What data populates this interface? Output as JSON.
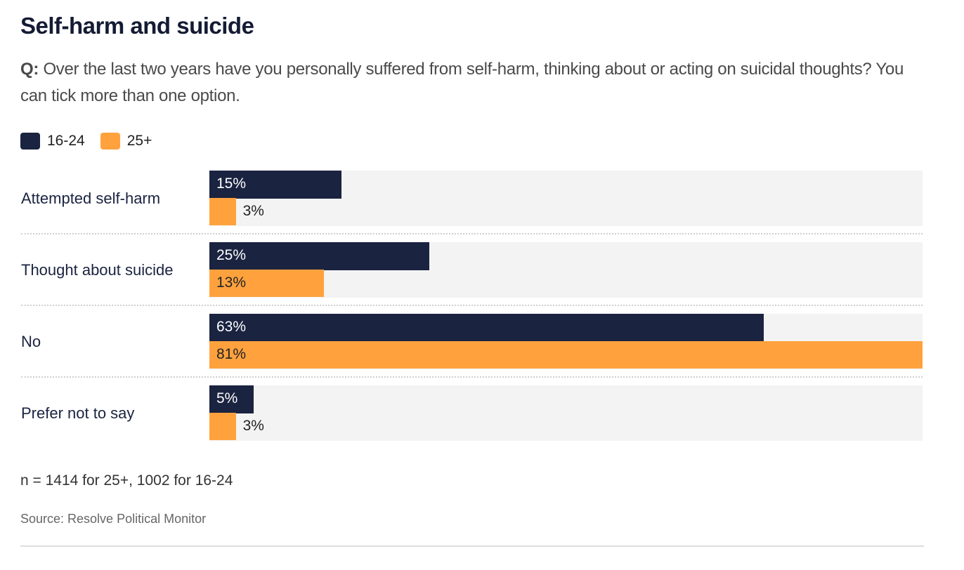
{
  "chart_data": {
    "type": "bar",
    "orientation": "horizontal",
    "title": "Self-harm and suicide",
    "subtitle_prefix": "Q:",
    "subtitle": "Over the last two years have you personally suffered from self-harm, thinking about or acting on suicidal thoughts? You can tick more than one option.",
    "categories": [
      "Attempted self-harm",
      "Thought about suicide",
      "No",
      "Prefer not to say"
    ],
    "series": [
      {
        "name": "16-24",
        "color": "#1a2340",
        "values": [
          15,
          25,
          63,
          5
        ]
      },
      {
        "name": "25+",
        "color": "#ffa23e",
        "values": [
          3,
          13,
          81,
          3
        ]
      }
    ],
    "unit": "%",
    "xlim": [
      0,
      81
    ],
    "legend": "top-left",
    "grid": false,
    "note": "n = 1414 for 25+, 1002 for 16-24",
    "source": "Source: Resolve Political Monitor"
  }
}
